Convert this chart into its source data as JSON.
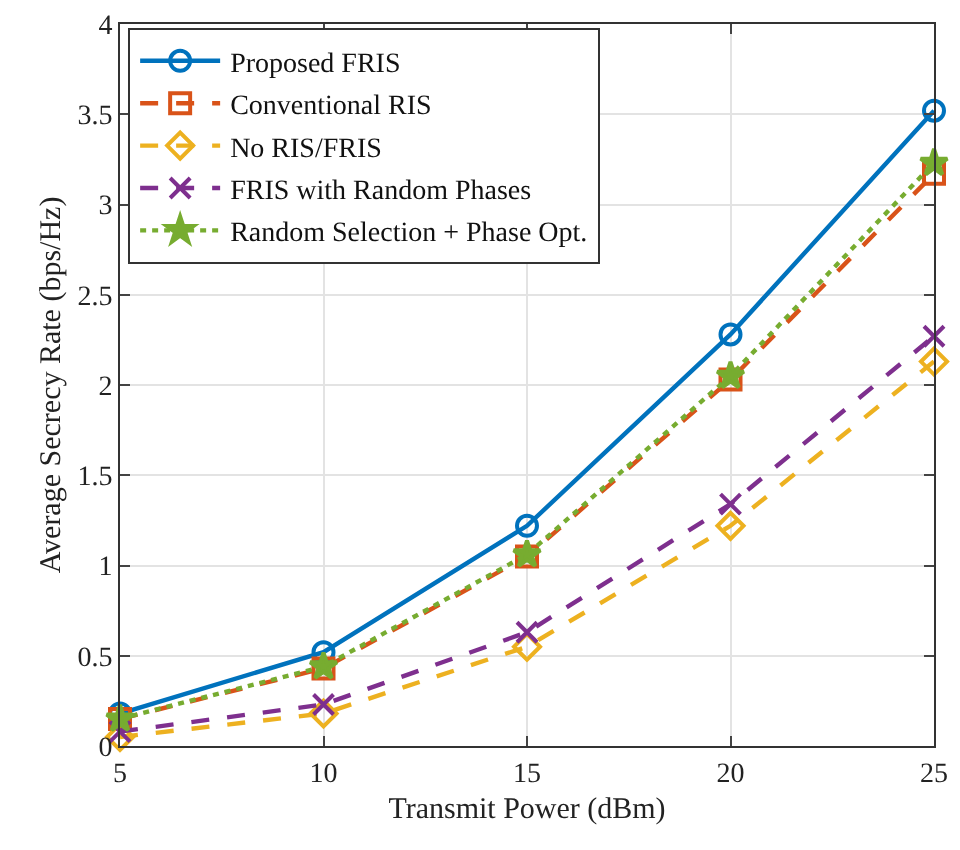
{
  "chart_data": {
    "type": "line",
    "xlabel": "Transmit Power (dBm)",
    "ylabel": "Average Secrecy Rate (bps/Hz)",
    "x": [
      5,
      10,
      15,
      20,
      25
    ],
    "series": [
      {
        "name": "Proposed FRIS",
        "color": "#0072bd",
        "marker": "circle",
        "line_style": "solid",
        "values": [
          0.18,
          0.52,
          1.22,
          2.28,
          3.52
        ]
      },
      {
        "name": "Conventional RIS",
        "color": "#d95319",
        "marker": "square",
        "line_style": "dashed",
        "values": [
          0.15,
          0.43,
          1.05,
          2.03,
          3.17
        ]
      },
      {
        "name": "No RIS/FRIS",
        "color": "#edb120",
        "marker": "diamond",
        "line_style": "dashed",
        "values": [
          0.05,
          0.18,
          0.55,
          1.22,
          2.13
        ]
      },
      {
        "name": "FRIS with Random Phases",
        "color": "#7e2f8e",
        "marker": "cross",
        "line_style": "dashed",
        "values": [
          0.08,
          0.23,
          0.63,
          1.34,
          2.27
        ]
      },
      {
        "name": "Random Selection + Phase Opt.",
        "color": "#77ac30",
        "marker": "star",
        "line_style": "dotted",
        "values": [
          0.15,
          0.44,
          1.06,
          2.05,
          3.23
        ]
      }
    ],
    "xlim": [
      5,
      25
    ],
    "xticks": [
      5,
      10,
      15,
      20,
      25
    ],
    "ylim": [
      0,
      4
    ],
    "yticks": [
      0,
      0.5,
      1,
      1.5,
      2,
      2.5,
      3,
      3.5,
      4
    ],
    "grid": true,
    "legend": "top left"
  }
}
